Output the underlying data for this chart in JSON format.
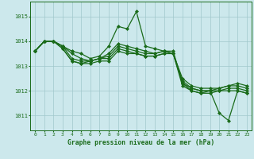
{
  "title": "Graphe pression niveau de la mer (hPa)",
  "ylabel_ticks": [
    1011,
    1012,
    1013,
    1014,
    1015
  ],
  "xlim": [
    -0.5,
    23.5
  ],
  "ylim": [
    1010.4,
    1015.6
  ],
  "bg_color": "#cce8ec",
  "grid_color": "#a0c8cc",
  "line_color": "#1a6b1a",
  "marker": "D",
  "markersize": 2.0,
  "linewidth": 0.9,
  "series": [
    [
      1013.6,
      1014.0,
      1014.0,
      1013.8,
      1013.6,
      1013.5,
      1013.3,
      1013.4,
      1013.8,
      1014.6,
      1014.5,
      1015.2,
      1013.8,
      1013.7,
      1013.6,
      1013.6,
      1012.3,
      1012.0,
      1011.9,
      1012.0,
      1011.1,
      1010.8,
      1012.0,
      1011.9
    ],
    [
      1013.6,
      1014.0,
      1014.0,
      1013.7,
      1013.2,
      1013.1,
      1013.1,
      1013.2,
      1013.2,
      1013.6,
      1013.5,
      1013.5,
      1013.4,
      1013.4,
      1013.5,
      1013.5,
      1012.2,
      1012.0,
      1011.9,
      1011.9,
      1012.0,
      1012.0,
      1012.0,
      1011.9
    ],
    [
      1013.6,
      1014.0,
      1014.0,
      1013.7,
      1013.2,
      1013.1,
      1013.2,
      1013.3,
      1013.3,
      1013.7,
      1013.6,
      1013.5,
      1013.4,
      1013.4,
      1013.5,
      1013.5,
      1012.3,
      1012.1,
      1012.0,
      1012.0,
      1012.0,
      1012.1,
      1012.1,
      1012.0
    ],
    [
      1013.6,
      1014.0,
      1014.0,
      1013.8,
      1013.3,
      1013.2,
      1013.2,
      1013.3,
      1013.4,
      1013.8,
      1013.7,
      1013.6,
      1013.5,
      1013.5,
      1013.6,
      1013.5,
      1012.4,
      1012.1,
      1012.0,
      1012.0,
      1012.1,
      1012.2,
      1012.2,
      1012.1
    ],
    [
      1013.6,
      1014.0,
      1014.0,
      1013.8,
      1013.5,
      1013.3,
      1013.2,
      1013.3,
      1013.5,
      1013.9,
      1013.8,
      1013.7,
      1013.6,
      1013.5,
      1013.6,
      1013.5,
      1012.5,
      1012.2,
      1012.1,
      1012.1,
      1012.1,
      1012.2,
      1012.3,
      1012.2
    ]
  ]
}
